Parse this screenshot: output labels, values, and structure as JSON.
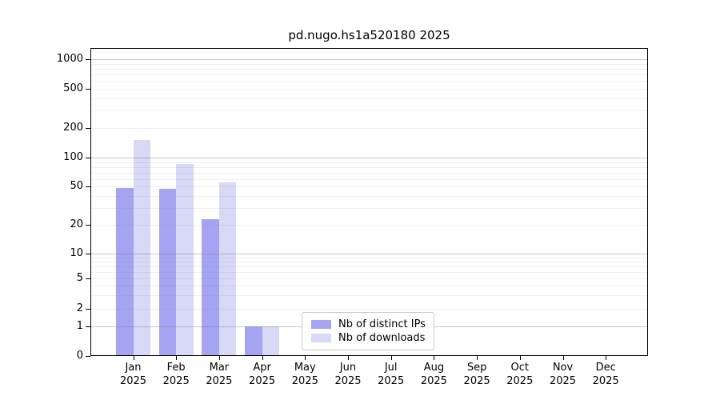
{
  "chart_data": {
    "type": "bar",
    "title": "pd.nugo.hs1a520180 2025",
    "categories": [
      "Jan",
      "Feb",
      "Mar",
      "Apr",
      "May",
      "Jun",
      "Jul",
      "Aug",
      "Sep",
      "Oct",
      "Nov",
      "Dec"
    ],
    "category_year": "2025",
    "series": [
      {
        "name": "Nb of distinct IPs",
        "color": "#a4a4f2",
        "values": [
          48,
          47,
          23,
          1,
          0,
          0,
          0,
          0,
          0,
          0,
          0,
          0
        ]
      },
      {
        "name": "Nb of downloads",
        "color": "#d8d8f7",
        "values": [
          150,
          86,
          55,
          1,
          0,
          0,
          0,
          0,
          0,
          0,
          0,
          0
        ]
      }
    ],
    "yticks": [
      0,
      1,
      2,
      5,
      10,
      20,
      50,
      100,
      200,
      500,
      1000
    ],
    "yscale": "symlog",
    "ylim": [
      0,
      1250
    ],
    "xlabel": "",
    "ylabel": "",
    "grid": true,
    "legend_position": "inside-bottom-center"
  },
  "colors": {
    "bar_distinct_ips": "#a4a4f2",
    "bar_downloads": "#d8d8f7",
    "grid_major": "#c6c6c6",
    "grid_minor": "#ededed",
    "axis": "#000000",
    "background": "#ffffff"
  }
}
